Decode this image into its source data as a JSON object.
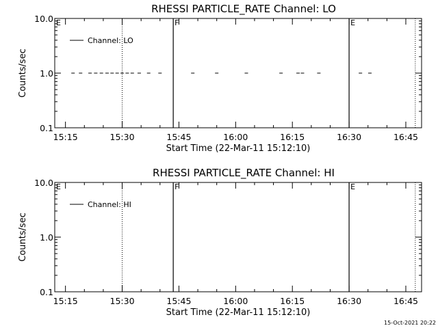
{
  "chart_data": [
    {
      "type": "scatter",
      "title": "RHESSI PARTICLE_RATE Channel: LO",
      "xlabel": "Start Time (22-Mar-11 15:12:10)",
      "ylabel": "Counts/sec",
      "y_scale": "log",
      "ylim": [
        0.1,
        10.0
      ],
      "y_tick_labels": [
        "0.1",
        "1.0",
        "10.0"
      ],
      "x_tick_labels": [
        "15:15",
        "15:30",
        "15:45",
        "16:00",
        "16:15",
        "16:30",
        "16:45"
      ],
      "xlim_minutes_after_1512": [
        0,
        97
      ],
      "grid": false,
      "legend": {
        "placement": "top-left",
        "entries": [
          "Channel: LO"
        ]
      },
      "series": [
        {
          "name": "Channel: LO",
          "marker": "dash",
          "points": [
            {
              "t": "15:17:00",
              "y": 1.0
            },
            {
              "t": "15:19:00",
              "y": 1.0
            },
            {
              "t": "15:21:30",
              "y": 1.0
            },
            {
              "t": "15:23:00",
              "y": 1.0
            },
            {
              "t": "15:24:30",
              "y": 1.0
            },
            {
              "t": "15:26:00",
              "y": 1.0
            },
            {
              "t": "15:27:20",
              "y": 1.0
            },
            {
              "t": "15:28:40",
              "y": 1.0
            },
            {
              "t": "15:30:00",
              "y": 1.0
            },
            {
              "t": "15:31:20",
              "y": 1.0
            },
            {
              "t": "15:32:40",
              "y": 1.0
            },
            {
              "t": "15:34:30",
              "y": 1.0
            },
            {
              "t": "15:37:00",
              "y": 1.0
            },
            {
              "t": "15:40:00",
              "y": 1.0
            },
            {
              "t": "15:48:40",
              "y": 1.0
            },
            {
              "t": "15:55:00",
              "y": 1.0
            },
            {
              "t": "16:02:50",
              "y": 1.0
            },
            {
              "t": "16:12:00",
              "y": 1.0
            },
            {
              "t": "16:16:30",
              "y": 1.0
            },
            {
              "t": "16:17:40",
              "y": 1.0
            },
            {
              "t": "16:22:00",
              "y": 1.0
            },
            {
              "t": "16:33:00",
              "y": 1.0
            },
            {
              "t": "16:35:30",
              "y": 1.0
            }
          ]
        }
      ],
      "events": [
        {
          "flag": "E",
          "t": "15:12:10",
          "style": "none"
        },
        {
          "flag": "",
          "t": "15:30:00",
          "style": "dotted"
        },
        {
          "flag": "F",
          "t": "15:43:30",
          "style": "solid"
        },
        {
          "flag": "E",
          "t": "16:30:00",
          "style": "solid"
        },
        {
          "flag": "",
          "t": "16:47:30",
          "style": "dotted"
        }
      ]
    },
    {
      "type": "scatter",
      "title": "RHESSI PARTICLE_RATE Channel: HI",
      "xlabel": "Start Time (22-Mar-11 15:12:10)",
      "ylabel": "Counts/sec",
      "y_scale": "log",
      "ylim": [
        0.1,
        10.0
      ],
      "y_tick_labels": [
        "0.1",
        "1.0",
        "10.0"
      ],
      "x_tick_labels": [
        "15:15",
        "15:30",
        "15:45",
        "16:00",
        "16:15",
        "16:30",
        "16:45"
      ],
      "xlim_minutes_after_1512": [
        0,
        97
      ],
      "grid": false,
      "legend": {
        "placement": "top-left",
        "entries": [
          "Channel: HI"
        ]
      },
      "series": [
        {
          "name": "Channel: HI",
          "marker": "dash",
          "points": []
        }
      ],
      "events": [
        {
          "flag": "E",
          "t": "15:12:10",
          "style": "none"
        },
        {
          "flag": "",
          "t": "15:30:00",
          "style": "dotted"
        },
        {
          "flag": "F",
          "t": "15:43:30",
          "style": "solid"
        },
        {
          "flag": "E",
          "t": "16:30:00",
          "style": "solid"
        },
        {
          "flag": "",
          "t": "16:47:30",
          "style": "dotted"
        }
      ]
    }
  ],
  "footer": {
    "date_stamp": "15-Oct-2021 20:22"
  }
}
